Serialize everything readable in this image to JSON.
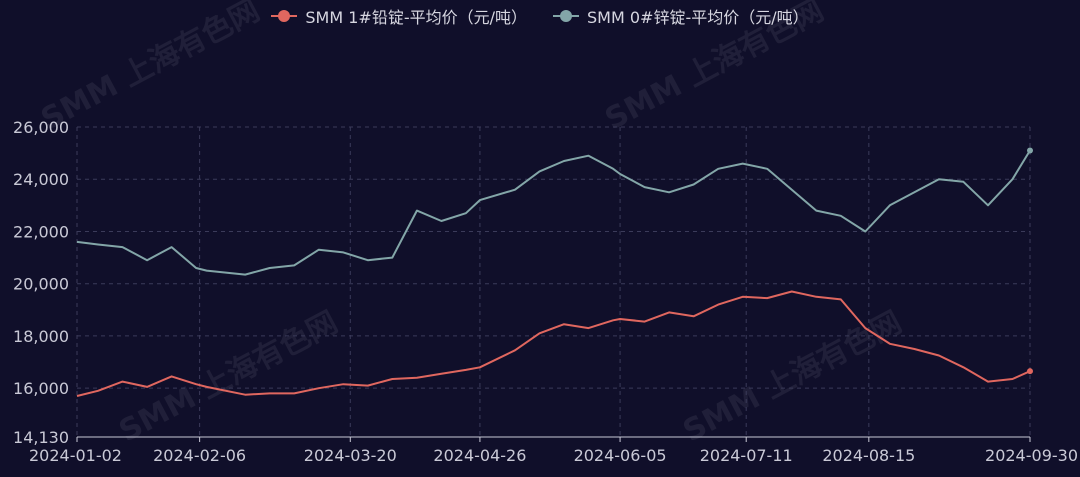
{
  "watermark": "SMM 上海有色网",
  "colors": {
    "background": "#100f2a",
    "lead": "#e0675f",
    "zinc": "#83a6a8",
    "grid": "#3b3b5a",
    "axis": "#c9c9d6"
  },
  "chart_data": {
    "type": "line",
    "title": "",
    "xlabel": "",
    "ylabel": "",
    "ylim": [
      14130,
      26000
    ],
    "y_ticks": [
      14130,
      16000,
      18000,
      20000,
      22000,
      24000,
      26000
    ],
    "y_tick_labels": [
      "14,130",
      "16,000",
      "18,000",
      "20,000",
      "22,000",
      "24,000",
      "26,000"
    ],
    "x_range": [
      "2024-01-02",
      "2024-09-30"
    ],
    "x_ticks": [
      "2024-01-02",
      "2024-02-06",
      "2024-03-20",
      "2024-04-26",
      "2024-06-05",
      "2024-07-11",
      "2024-08-15",
      "2024-09-30"
    ],
    "grid": true,
    "legend": "top-center",
    "series": [
      {
        "name": "SMM 1#铅锭-平均价（元/吨）",
        "x": [
          "2024-01-02",
          "2024-01-08",
          "2024-01-15",
          "2024-01-22",
          "2024-01-29",
          "2024-02-05",
          "2024-02-08",
          "2024-02-19",
          "2024-02-26",
          "2024-03-04",
          "2024-03-11",
          "2024-03-18",
          "2024-03-25",
          "2024-04-01",
          "2024-04-08",
          "2024-04-15",
          "2024-04-22",
          "2024-04-26",
          "2024-05-06",
          "2024-05-13",
          "2024-05-20",
          "2024-05-27",
          "2024-06-03",
          "2024-06-05",
          "2024-06-12",
          "2024-06-19",
          "2024-06-26",
          "2024-07-03",
          "2024-07-10",
          "2024-07-17",
          "2024-07-24",
          "2024-07-31",
          "2024-08-07",
          "2024-08-14",
          "2024-08-21",
          "2024-08-28",
          "2024-09-04",
          "2024-09-11",
          "2024-09-18",
          "2024-09-25",
          "2024-09-30"
        ],
        "values": [
          15700,
          15900,
          16250,
          16050,
          16450,
          16150,
          16050,
          15750,
          15800,
          15800,
          16000,
          16150,
          16100,
          16350,
          16400,
          16550,
          16700,
          16800,
          17450,
          18100,
          18450,
          18300,
          18600,
          18650,
          18550,
          18900,
          18750,
          19200,
          19500,
          19450,
          19700,
          19500,
          19400,
          18300,
          17700,
          17500,
          17250,
          16800,
          16250,
          16350,
          16650
        ]
      },
      {
        "name": "SMM 0#锌锭-平均价（元/吨）",
        "x": [
          "2024-01-02",
          "2024-01-08",
          "2024-01-15",
          "2024-01-22",
          "2024-01-29",
          "2024-02-05",
          "2024-02-08",
          "2024-02-19",
          "2024-02-26",
          "2024-03-04",
          "2024-03-11",
          "2024-03-18",
          "2024-03-25",
          "2024-04-01",
          "2024-04-08",
          "2024-04-15",
          "2024-04-22",
          "2024-04-26",
          "2024-05-06",
          "2024-05-13",
          "2024-05-20",
          "2024-05-27",
          "2024-06-03",
          "2024-06-05",
          "2024-06-12",
          "2024-06-19",
          "2024-06-26",
          "2024-07-03",
          "2024-07-10",
          "2024-07-17",
          "2024-07-24",
          "2024-07-31",
          "2024-08-07",
          "2024-08-14",
          "2024-08-21",
          "2024-08-28",
          "2024-09-04",
          "2024-09-11",
          "2024-09-18",
          "2024-09-25",
          "2024-09-30"
        ],
        "values": [
          21600,
          21500,
          21400,
          20900,
          21400,
          20600,
          20500,
          20350,
          20600,
          20700,
          21300,
          21200,
          20900,
          21000,
          22800,
          22400,
          22700,
          23200,
          23600,
          24300,
          24700,
          24900,
          24400,
          24200,
          23700,
          23500,
          23800,
          24400,
          24600,
          24400,
          23600,
          22800,
          22600,
          22000,
          23000,
          23500,
          24000,
          23900,
          23000,
          24000,
          25100
        ]
      }
    ]
  }
}
